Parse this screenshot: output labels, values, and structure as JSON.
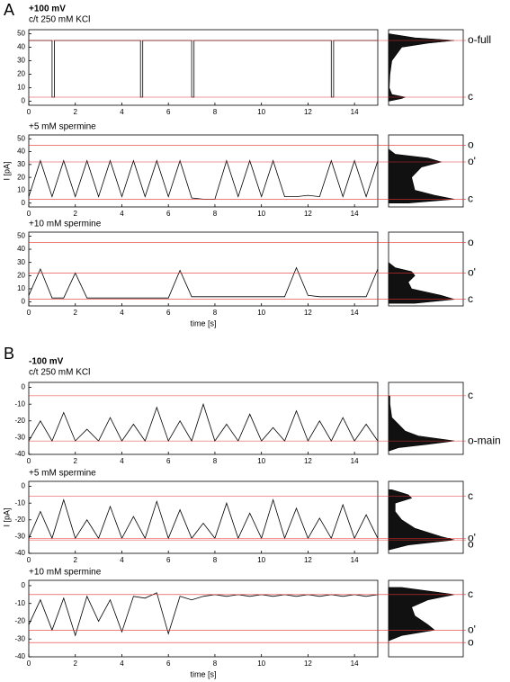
{
  "panel_labels": [
    "A",
    "B"
  ],
  "chart_data": [
    {
      "type": "line",
      "title": "+100 mV",
      "subtitle": "c/t 250 mM KCl",
      "xlim": [
        0,
        15
      ],
      "xticks": [
        0,
        2,
        4,
        6,
        8,
        10,
        12,
        14
      ],
      "ylim": [
        -3,
        53
      ],
      "yticks": [
        0,
        10,
        20,
        30,
        40,
        50
      ],
      "levels": [
        {
          "value": 45,
          "label": "o-full"
        },
        {
          "value": 3,
          "label": "c"
        }
      ],
      "series": [
        {
          "color": "#000000",
          "x": [
            0,
            1.0,
            1.0,
            1.1,
            1.1,
            4.8,
            4.8,
            4.9,
            4.9,
            7.0,
            7.0,
            7.1,
            7.1,
            13.0,
            13.0,
            13.1,
            13.1,
            15
          ],
          "values": [
            45,
            45,
            3,
            3,
            45,
            45,
            3,
            3,
            45,
            45,
            3,
            3,
            45,
            45,
            3,
            3,
            45,
            45
          ]
        }
      ],
      "histogram": {
        "y": [
          0,
          2,
          3,
          5,
          10,
          20,
          30,
          40,
          43,
          45,
          47,
          50
        ],
        "counts": [
          0,
          0.2,
          0.25,
          0.05,
          0.01,
          0.02,
          0.05,
          0.2,
          0.6,
          1,
          0.4,
          0
        ]
      }
    },
    {
      "type": "line",
      "title": "+5 mM spermine",
      "ylabel": "I [pA]",
      "xlim": [
        0,
        15
      ],
      "xticks": [
        0,
        2,
        4,
        6,
        8,
        10,
        12,
        14
      ],
      "ylim": [
        -3,
        53
      ],
      "yticks": [
        0,
        10,
        20,
        30,
        40,
        50
      ],
      "levels": [
        {
          "value": 45,
          "label": "o"
        },
        {
          "value": 32,
          "label": "o'"
        },
        {
          "value": 3,
          "label": "c"
        }
      ],
      "series": [
        {
          "color": "#000000",
          "x": [
            0,
            0.5,
            1,
            1.5,
            2,
            2.5,
            3,
            3.5,
            4,
            4.5,
            5,
            5.5,
            6,
            6.5,
            7,
            7.5,
            8,
            8.5,
            9,
            9.5,
            10,
            10.5,
            11,
            11.5,
            12,
            12.5,
            13,
            13.5,
            14,
            14.5,
            15
          ],
          "values": [
            5,
            33,
            5,
            33,
            5,
            33,
            5,
            33,
            5,
            33,
            5,
            33,
            5,
            33,
            4,
            3,
            3,
            33,
            5,
            33,
            5,
            33,
            5,
            5,
            6,
            5,
            33,
            5,
            33,
            5,
            33
          ]
        }
      ],
      "histogram": {
        "y": [
          0,
          3,
          6,
          10,
          20,
          28,
          32,
          35,
          38,
          42
        ],
        "counts": [
          0.3,
          1,
          0.7,
          0.4,
          0.35,
          0.5,
          0.8,
          0.6,
          0.1,
          0
        ]
      }
    },
    {
      "type": "line",
      "title": "+10 mM spermine",
      "xlabel": "time [s]",
      "xlim": [
        0,
        15
      ],
      "xticks": [
        0,
        2,
        4,
        6,
        8,
        10,
        12,
        14
      ],
      "ylim": [
        -3,
        53
      ],
      "yticks": [
        0,
        10,
        20,
        30,
        40,
        50
      ],
      "levels": [
        {
          "value": 45,
          "label": "o"
        },
        {
          "value": 22,
          "label": "o'"
        },
        {
          "value": 2,
          "label": "c"
        }
      ],
      "series": [
        {
          "color": "#000000",
          "x": [
            0,
            0.5,
            1,
            1.5,
            2,
            2.5,
            3,
            3.5,
            4,
            4.5,
            5,
            5.5,
            6,
            6.5,
            7,
            7.5,
            8,
            8.5,
            9,
            9.5,
            10,
            10.5,
            11,
            11.5,
            12,
            12.5,
            13,
            13.5,
            14,
            14.5,
            15
          ],
          "values": [
            5,
            25,
            3,
            3,
            22,
            3,
            3,
            3,
            3,
            3,
            3,
            3,
            3,
            24,
            4,
            4,
            4,
            4,
            4,
            4,
            4,
            4,
            4,
            26,
            5,
            4,
            4,
            4,
            4,
            4,
            25
          ]
        }
      ],
      "histogram": {
        "y": [
          -1,
          2,
          5,
          10,
          15,
          20,
          23,
          26,
          30
        ],
        "counts": [
          0.4,
          1,
          0.8,
          0.35,
          0.3,
          0.4,
          0.35,
          0.1,
          0
        ]
      }
    },
    {
      "type": "line",
      "title": "-100 mV",
      "subtitle": "c/t 250 mM KCl",
      "xlim": [
        0,
        15
      ],
      "xticks": [
        0,
        2,
        4,
        6,
        8,
        10,
        12,
        14
      ],
      "ylim": [
        -40,
        3
      ],
      "yticks": [
        0,
        -10,
        -20,
        -30,
        -40
      ],
      "levels": [
        {
          "value": -5,
          "label": "c"
        },
        {
          "value": -32,
          "label": "o-main"
        }
      ],
      "series": [
        {
          "color": "#000000",
          "x": [
            0,
            0.5,
            1,
            1.5,
            2,
            2.5,
            3,
            3.5,
            4,
            4.5,
            5,
            5.5,
            6,
            6.5,
            7,
            7.5,
            8,
            8.5,
            9,
            9.5,
            10,
            10.5,
            11,
            11.5,
            12,
            12.5,
            13,
            13.5,
            14,
            14.5,
            15
          ],
          "values": [
            -32,
            -20,
            -32,
            -15,
            -32,
            -25,
            -32,
            -18,
            -32,
            -22,
            -32,
            -12,
            -32,
            -20,
            -32,
            -10,
            -32,
            -22,
            -32,
            -16,
            -32,
            -24,
            -32,
            -14,
            -32,
            -20,
            -32,
            -18,
            -32,
            -22,
            -32
          ]
        }
      ],
      "histogram": {
        "y": [
          -5,
          -10,
          -18,
          -22,
          -26,
          -29,
          -32,
          -34,
          -36,
          -38
        ],
        "counts": [
          0.02,
          0.02,
          0.05,
          0.15,
          0.25,
          0.45,
          1,
          0.6,
          0.15,
          0
        ]
      }
    },
    {
      "type": "line",
      "title": "+5 mM spermine",
      "ylabel": "I [pA]",
      "xlim": [
        0,
        15
      ],
      "xticks": [
        0,
        2,
        4,
        6,
        8,
        10,
        12,
        14
      ],
      "ylim": [
        -40,
        3
      ],
      "yticks": [
        0,
        -10,
        -20,
        -30,
        -40
      ],
      "levels": [
        {
          "value": -6,
          "label": "c"
        },
        {
          "value": -31,
          "label": "o'"
        },
        {
          "value": -32,
          "label": "o"
        }
      ],
      "series": [
        {
          "color": "#000000",
          "x": [
            0,
            0.5,
            1,
            1.5,
            2,
            2.5,
            3,
            3.5,
            4,
            4.5,
            5,
            5.5,
            6,
            6.5,
            7,
            7.5,
            8,
            8.5,
            9,
            9.5,
            10,
            10.5,
            11,
            11.5,
            12,
            12.5,
            13,
            13.5,
            14,
            14.5,
            15
          ],
          "values": [
            -31,
            -15,
            -31,
            -8,
            -31,
            -20,
            -31,
            -12,
            -31,
            -18,
            -31,
            -9,
            -31,
            -14,
            -31,
            -22,
            -31,
            -10,
            -31,
            -16,
            -31,
            -8,
            -31,
            -13,
            -31,
            -19,
            -31,
            -11,
            -31,
            -17,
            -31
          ]
        }
      ],
      "histogram": {
        "y": [
          -2,
          -5,
          -7,
          -10,
          -15,
          -20,
          -25,
          -30,
          -32,
          -35,
          -38
        ],
        "counts": [
          0.05,
          0.3,
          0.35,
          0.1,
          0.1,
          0.2,
          0.4,
          0.8,
          1,
          0.3,
          0
        ]
      }
    },
    {
      "type": "line",
      "title": "+10 mM spermine",
      "xlabel": "time [s]",
      "xlim": [
        0,
        15
      ],
      "xticks": [
        0,
        2,
        4,
        6,
        8,
        10,
        12,
        14
      ],
      "ylim": [
        -40,
        3
      ],
      "yticks": [
        0,
        -10,
        -20,
        -30,
        -40
      ],
      "levels": [
        {
          "value": -5,
          "label": "c"
        },
        {
          "value": -25,
          "label": "o'"
        },
        {
          "value": -32,
          "label": "o"
        }
      ],
      "series": [
        {
          "color": "#000000",
          "x": [
            0,
            0.5,
            1,
            1.5,
            2,
            2.5,
            3,
            3.5,
            4,
            4.5,
            5,
            5.5,
            6,
            6.5,
            7,
            7.5,
            8,
            8.5,
            9,
            9.5,
            10,
            10.5,
            11,
            11.5,
            12,
            12.5,
            13,
            13.5,
            14,
            14.5,
            15
          ],
          "values": [
            -22,
            -8,
            -25,
            -7,
            -28,
            -6,
            -20,
            -8,
            -26,
            -6,
            -7,
            -4,
            -27,
            -6,
            -8,
            -6,
            -5,
            -6,
            -5,
            -6,
            -5,
            -6,
            -5,
            -6,
            -5,
            -6,
            -5,
            -6,
            -5,
            -6,
            -5
          ]
        }
      ],
      "histogram": {
        "y": [
          -1,
          -5,
          -8,
          -12,
          -17,
          -22,
          -25,
          -28,
          -31
        ],
        "counts": [
          0.2,
          1,
          0.6,
          0.35,
          0.4,
          0.6,
          0.7,
          0.2,
          0
        ]
      }
    }
  ]
}
